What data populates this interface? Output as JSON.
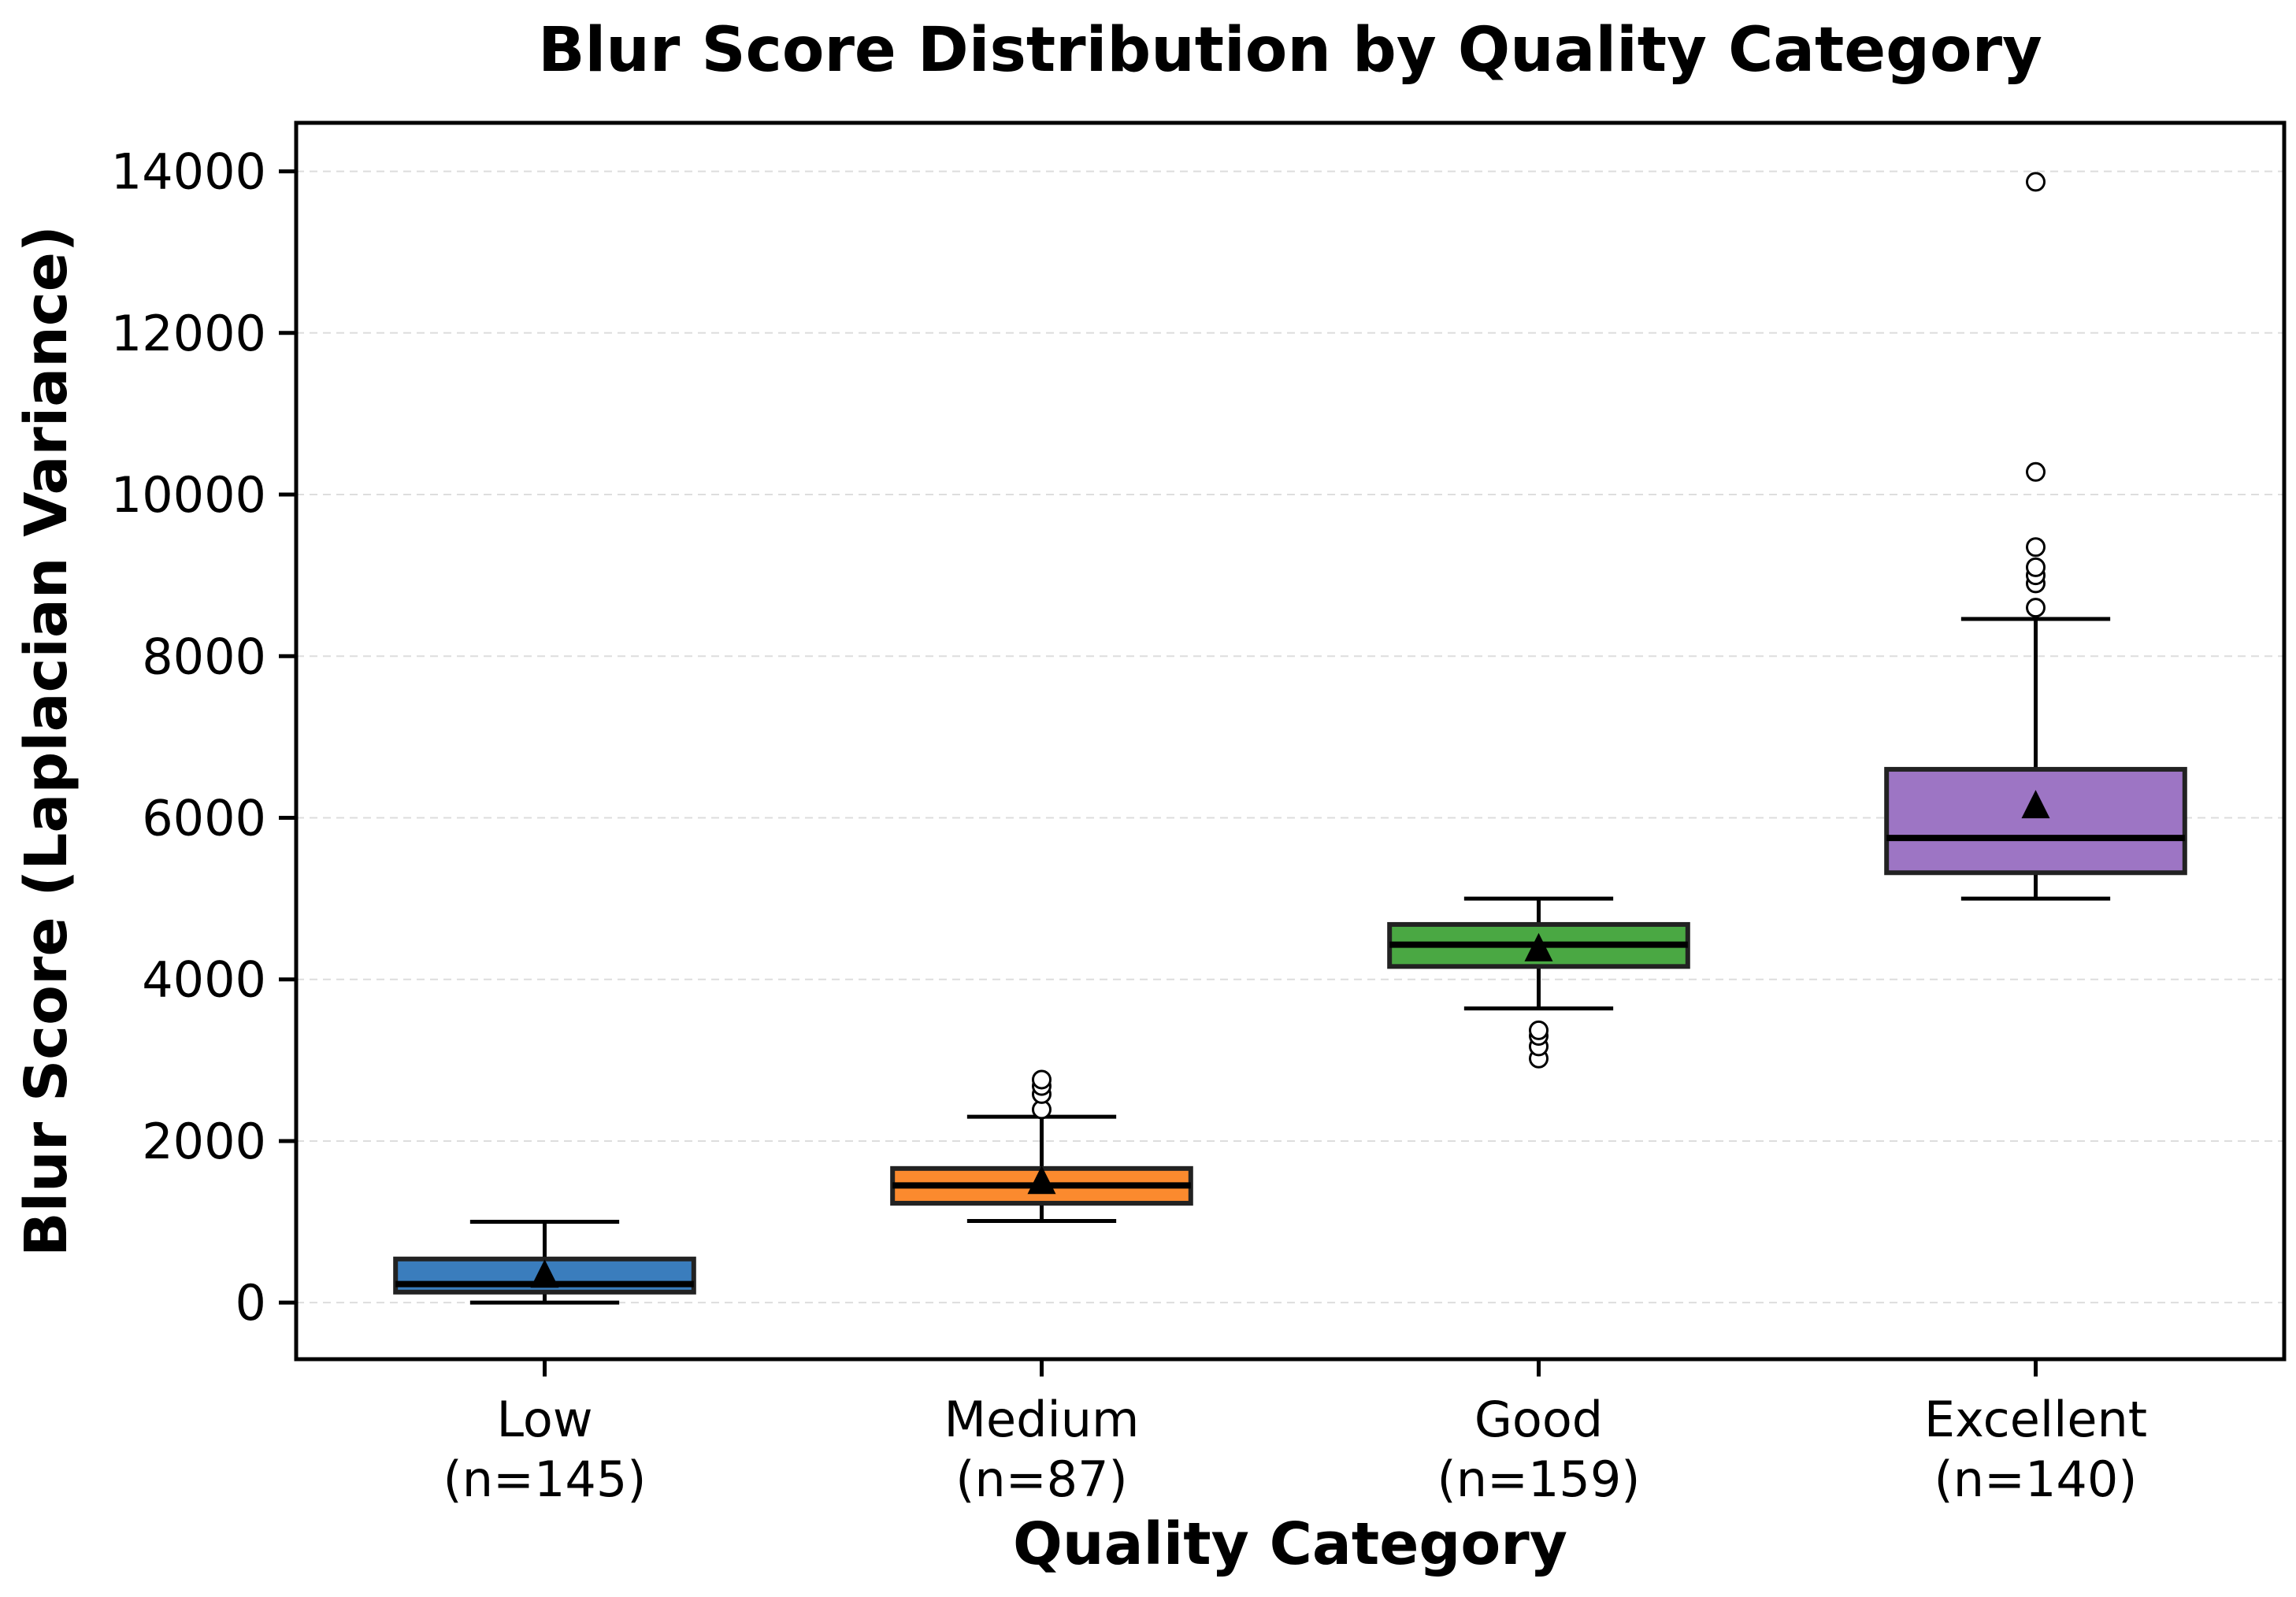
{
  "chart_data": {
    "type": "box",
    "title": "Blur Score Distribution by Quality Category",
    "xlabel": "Quality Category",
    "ylabel": "Blur Score (Laplacian Variance)",
    "ylim": [
      -700,
      14600
    ],
    "yticks": [
      0,
      2000,
      4000,
      6000,
      8000,
      10000,
      12000,
      14000
    ],
    "grid": "y-dashed",
    "categories": [
      {
        "name": "Low",
        "n_label": "(n=145)",
        "color": "#3a7dbd",
        "whisker_low": 0,
        "q1": 130,
        "median": 230,
        "q3": 540,
        "whisker_high": 1000,
        "mean": 340,
        "outliers": []
      },
      {
        "name": "Medium",
        "n_label": "(n=87)",
        "color": "#fb8a2e",
        "whisker_low": 1010,
        "q1": 1230,
        "median": 1450,
        "q3": 1660,
        "whisker_high": 2300,
        "mean": 1500,
        "outliers": [
          2390,
          2580,
          2680,
          2760
        ]
      },
      {
        "name": "Good",
        "n_label": "(n=159)",
        "color": "#4aa843",
        "whisker_low": 3640,
        "q1": 4160,
        "median": 4430,
        "q3": 4680,
        "whisker_high": 5000,
        "mean": 4380,
        "outliers": [
          3020,
          3170,
          3300,
          3370
        ]
      },
      {
        "name": "Excellent",
        "n_label": "(n=140)",
        "color": "#9d75c4",
        "whisker_low": 5000,
        "q1": 5320,
        "median": 5750,
        "q3": 6600,
        "whisker_high": 8460,
        "mean": 6150,
        "outliers": [
          8600,
          8900,
          9000,
          9100,
          9350,
          10280,
          13870
        ]
      }
    ]
  }
}
